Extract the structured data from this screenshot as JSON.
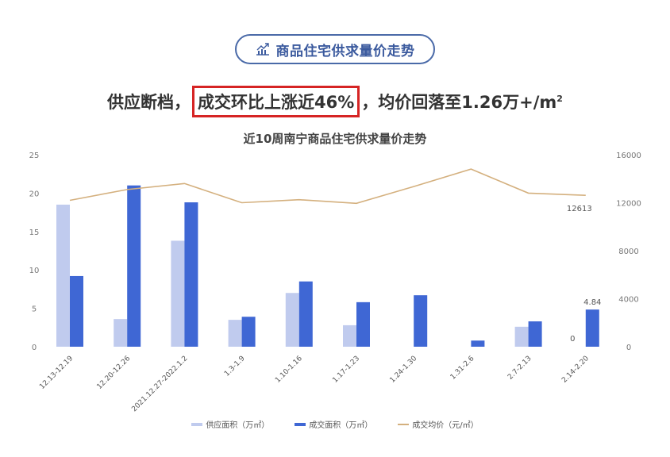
{
  "badge": {
    "label": "商品住宅供求量价走势",
    "icon": "trend-chart-icon"
  },
  "headline": {
    "prefix": "供应断档，",
    "highlight": "成交环比上涨近46%",
    "suffix": "，均价回落至1.26万+/m",
    "sup": "2",
    "highlight_border_color": "#d62424"
  },
  "colors": {
    "supply": "#c0cbee",
    "deal": "#3f67d4",
    "price": "#d4b07e",
    "badge": "#3b5a9e"
  },
  "chart_data": {
    "type": "bar",
    "title": "近10周南宁商品住宅供求量价走势",
    "categories": [
      "12.13-12.19",
      "12.20-12.26",
      "2021.12.27-2022.1.2",
      "1.3-1.9",
      "1.10-1.16",
      "1.17-1.23",
      "1.24-1.30",
      "1.31-2.6",
      "2.7-2.13",
      "2.14-2.20"
    ],
    "series": [
      {
        "name": "供应面积（万㎡）",
        "type": "bar",
        "axis": "left",
        "values": [
          18.5,
          3.6,
          13.8,
          3.5,
          7.0,
          2.8,
          0,
          0,
          2.6,
          0
        ]
      },
      {
        "name": "成交面积（万㎡）",
        "type": "bar",
        "axis": "left",
        "values": [
          9.2,
          21.0,
          18.8,
          3.9,
          8.5,
          5.8,
          6.7,
          0.8,
          3.3,
          4.84
        ]
      },
      {
        "name": "成交均价（元/㎡）",
        "type": "line",
        "axis": "right",
        "values": [
          12200,
          13100,
          13600,
          12000,
          12250,
          11950,
          13350,
          14800,
          12800,
          12613
        ]
      }
    ],
    "data_labels": [
      {
        "series": "成交面积（万㎡）",
        "index": 9,
        "text": "4.84"
      },
      {
        "series": "供应面积（万㎡）",
        "index": 9,
        "text": "0"
      },
      {
        "series": "成交均价（元/㎡）",
        "index": 9,
        "text": "12613"
      }
    ],
    "y_left": {
      "ticks": [
        0,
        5,
        10,
        15,
        20,
        25
      ],
      "range": [
        0,
        25
      ]
    },
    "y_right": {
      "ticks": [
        0,
        4000,
        8000,
        12000,
        16000
      ],
      "range": [
        0,
        16000
      ]
    },
    "xlabel": "",
    "ylabel": "",
    "grid": false,
    "legend_position": "bottom"
  },
  "legend": [
    {
      "label": "供应面积（万㎡）"
    },
    {
      "label": "成交面积（万㎡）"
    },
    {
      "label": "成交均价（元/㎡）"
    }
  ]
}
